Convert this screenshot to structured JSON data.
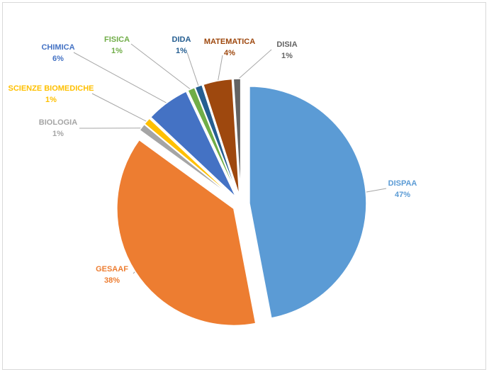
{
  "chart_data": {
    "type": "pie",
    "title": "",
    "exploded": true,
    "labels_with_leader_lines": true,
    "slices": [
      {
        "label": "DISPAA",
        "value": 47,
        "percent_label": "47%",
        "color": "#5b9bd5"
      },
      {
        "label": "GESAAF",
        "value": 38,
        "percent_label": "38%",
        "color": "#ed7d31"
      },
      {
        "label": "BIOLOGIA",
        "value": 1,
        "percent_label": "1%",
        "color": "#a5a5a5"
      },
      {
        "label": "SCIENZE BIOMEDICHE",
        "value": 1,
        "percent_label": "1%",
        "color": "#ffc000"
      },
      {
        "label": "CHIMICA",
        "value": 6,
        "percent_label": "6%",
        "color": "#4472c4"
      },
      {
        "label": "FISICA",
        "value": 1,
        "percent_label": "1%",
        "color": "#70ad47"
      },
      {
        "label": "DIDA",
        "value": 1,
        "percent_label": "1%",
        "color": "#255e91"
      },
      {
        "label": "MATEMATICA",
        "value": 4,
        "percent_label": "4%",
        "color": "#9e480e"
      },
      {
        "label": "DISIA",
        "value": 1,
        "percent_label": "1%",
        "color": "#636363"
      }
    ]
  }
}
